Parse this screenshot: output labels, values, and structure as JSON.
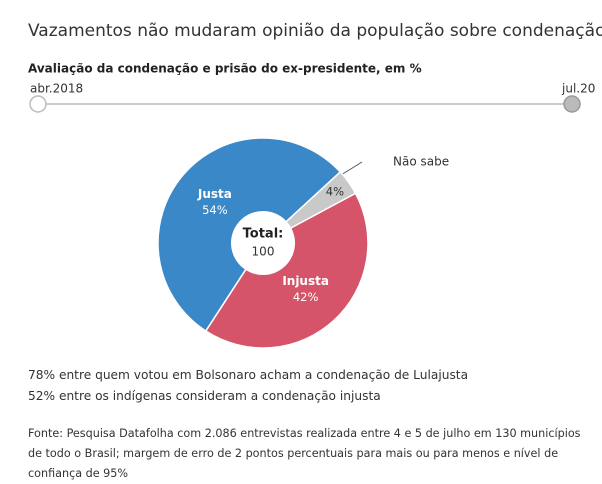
{
  "chart_data": {
    "type": "pie",
    "title": "Vazamentos não mudaram opinião da população sobre condenação de Lula",
    "subtitle": "Avaliação da condenação e prisão do ex-presidente, em %",
    "timeline": [
      "abr.2018",
      "jul.20"
    ],
    "categories": [
      "Justa",
      "Não sabe",
      "Injusta"
    ],
    "values": [
      54,
      4,
      42
    ],
    "value_labels": [
      "54%",
      "4%",
      "42%"
    ],
    "colors": [
      "#3b88c8",
      "#c9c9c9",
      "#d65469"
    ],
    "total_label": "Total:",
    "total": 100,
    "notes": [
      "78% entre quem votou em Bolsonaro acham a condenação de Lulajusta",
      "52% entre os indígenas consideram a condenação injusta"
    ],
    "source": "Fonte: Pesquisa Datafolha com 2.086 entrevistas realizada entre 4 e 5 de julho em 130 municípios de todo o Brasil; margem de erro de 2 pontos percentuais para mais ou para menos e nível de confiança de 95%"
  }
}
